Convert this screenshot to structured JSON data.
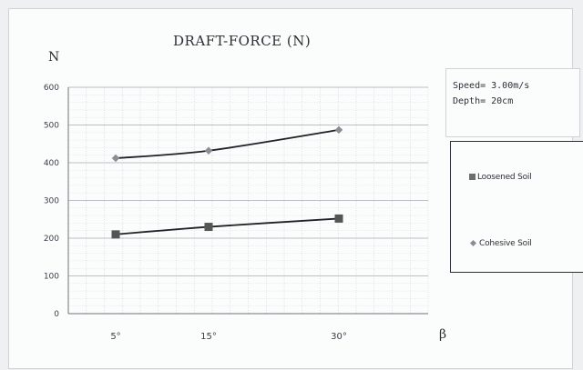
{
  "chart_data": {
    "type": "line",
    "title": "DRAFT-FORCE (N)",
    "ylabel": "N",
    "xlabel": "β",
    "categories": [
      "5°",
      "15°",
      "30°"
    ],
    "ylim": [
      0,
      600
    ],
    "yticks": [
      0,
      100,
      200,
      300,
      400,
      500,
      600
    ],
    "grid": true,
    "legend_placement": "right",
    "series": [
      {
        "name": "Loosened Soil",
        "values": [
          210,
          230,
          252
        ],
        "marker": "square",
        "color": "#555555"
      },
      {
        "name": "Cohesive Soil",
        "values": [
          412,
          432,
          487
        ],
        "marker": "diamond",
        "color": "#8a8f96"
      }
    ],
    "annotation": {
      "speed": "Speed= 3.00m/s",
      "depth": "Depth= 20cm"
    }
  }
}
